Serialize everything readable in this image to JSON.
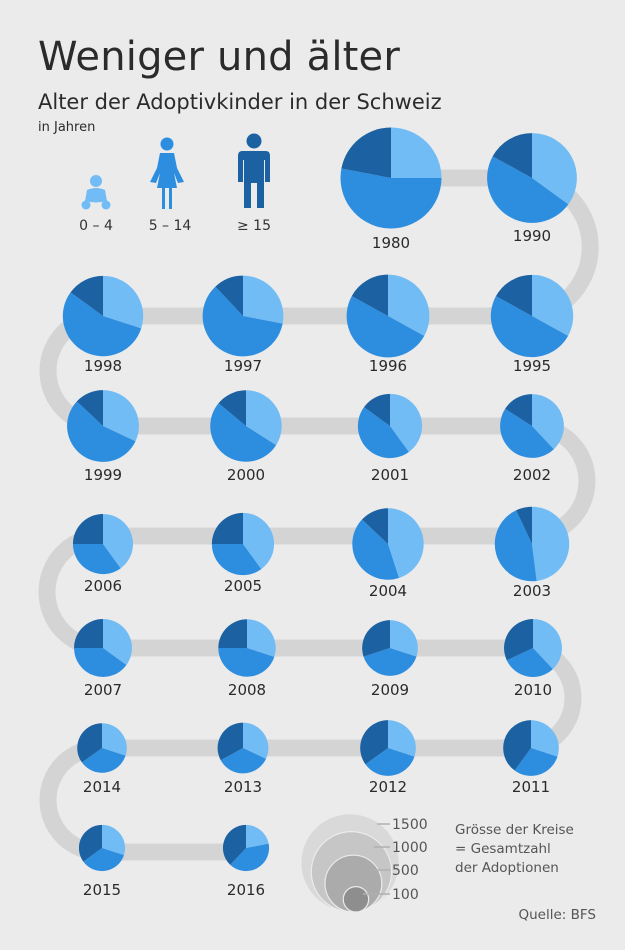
{
  "header": {
    "title": "Weniger und älter",
    "subtitle": "Alter der Adoptivkinder in der Schweiz",
    "unit": "in Jahren"
  },
  "legend": {
    "items": [
      {
        "label": "0 – 4",
        "icon": "baby-icon",
        "color": "#72bcf5"
      },
      {
        "label": "5 – 14",
        "icon": "woman-icon",
        "color": "#2d8ee0"
      },
      {
        "label": "≥ 15",
        "icon": "man-icon",
        "color": "#1c62a2"
      }
    ]
  },
  "size_key": {
    "labels": [
      "1500",
      "1000",
      "500",
      "100"
    ],
    "note": [
      "Grösse der Kreise",
      "= Gesamtzahl",
      "der Adoptionen"
    ]
  },
  "source": "Quelle: BFS",
  "colors": {
    "age_0_4": "#72bcf5",
    "age_5_14": "#2d8ee0",
    "age_15_plus": "#1c62a2",
    "path": "#d4d4d4",
    "background": "#ebebeb"
  },
  "chart_data": {
    "type": "pie",
    "categories": [
      "0 – 4",
      "5 – 14",
      "≥ 15"
    ],
    "size_encodes": "Gesamtzahl der Adoptionen",
    "size_reference": [
      1500,
      1000,
      500,
      100
    ],
    "pies": [
      {
        "year": "1980",
        "total": 1580,
        "shares": [
          25,
          53,
          22
        ]
      },
      {
        "year": "1990",
        "total": 1250,
        "shares": [
          35,
          48,
          17
        ]
      },
      {
        "year": "1995",
        "total": 1050,
        "shares": [
          33,
          50,
          17
        ]
      },
      {
        "year": "1996",
        "total": 1060,
        "shares": [
          33,
          50,
          17
        ]
      },
      {
        "year": "1997",
        "total": 1010,
        "shares": [
          28,
          60,
          12
        ]
      },
      {
        "year": "1998",
        "total": 1000,
        "shares": [
          30,
          55,
          15
        ]
      },
      {
        "year": "1999",
        "total": 800,
        "shares": [
          32,
          55,
          13
        ]
      },
      {
        "year": "2000",
        "total": 790,
        "shares": [
          34,
          52,
          14
        ]
      },
      {
        "year": "2001",
        "total": 640,
        "shares": [
          40,
          45,
          15
        ]
      },
      {
        "year": "2002",
        "total": 630,
        "shares": [
          38,
          46,
          16
        ]
      },
      {
        "year": "2003",
        "total": 860,
        "shares": [
          48,
          45,
          7
        ]
      },
      {
        "year": "2004",
        "total": 790,
        "shares": [
          45,
          42,
          13
        ]
      },
      {
        "year": "2005",
        "total": 600,
        "shares": [
          40,
          35,
          25
        ]
      },
      {
        "year": "2006",
        "total": 560,
        "shares": [
          40,
          35,
          25
        ]
      },
      {
        "year": "2007",
        "total": 520,
        "shares": [
          35,
          40,
          25
        ]
      },
      {
        "year": "2008",
        "total": 510,
        "shares": [
          30,
          45,
          25
        ]
      },
      {
        "year": "2009",
        "total": 480,
        "shares": [
          30,
          40,
          30
        ]
      },
      {
        "year": "2010",
        "total": 520,
        "shares": [
          38,
          30,
          32
        ]
      },
      {
        "year": "2011",
        "total": 480,
        "shares": [
          30,
          30,
          40
        ]
      },
      {
        "year": "2012",
        "total": 480,
        "shares": [
          30,
          35,
          35
        ]
      },
      {
        "year": "2013",
        "total": 400,
        "shares": [
          32,
          35,
          33
        ]
      },
      {
        "year": "2014",
        "total": 380,
        "shares": [
          30,
          35,
          35
        ]
      },
      {
        "year": "2015",
        "total": 330,
        "shares": [
          30,
          35,
          35
        ]
      },
      {
        "year": "2016",
        "total": 330,
        "shares": [
          22,
          40,
          38
        ]
      }
    ]
  }
}
